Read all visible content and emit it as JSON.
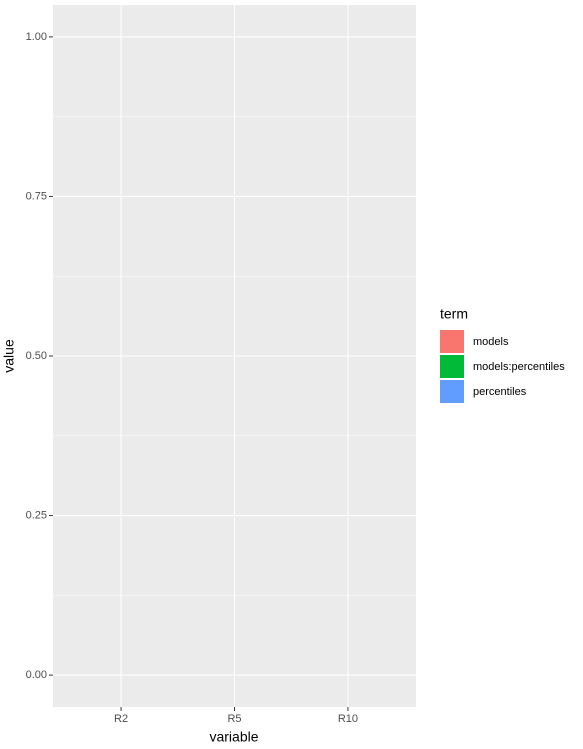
{
  "chart_data": {
    "type": "bar",
    "stacked": true,
    "x_label": "variable",
    "y_label": "value",
    "categories": [
      "R2",
      "R5",
      "R10"
    ],
    "series": [
      {
        "name": "models",
        "color": "#f8766d",
        "values": [
          0,
          0,
          0
        ]
      },
      {
        "name": "models:percentiles",
        "color": "#00ba38",
        "values": [
          0,
          0,
          0
        ]
      },
      {
        "name": "percentiles",
        "color": "#619cff",
        "values": [
          0,
          0,
          0
        ]
      }
    ],
    "legend_title": "term",
    "legend": "right",
    "ylim": [
      -0.05,
      1.05
    ],
    "yticks": [
      {
        "value": 0,
        "label": "0.00"
      },
      {
        "value": 0.25,
        "label": "0.25"
      },
      {
        "value": 0.5,
        "label": "0.50"
      },
      {
        "value": 0.75,
        "label": "0.75"
      },
      {
        "value": 1,
        "label": "1.00"
      }
    ],
    "grid": true
  }
}
